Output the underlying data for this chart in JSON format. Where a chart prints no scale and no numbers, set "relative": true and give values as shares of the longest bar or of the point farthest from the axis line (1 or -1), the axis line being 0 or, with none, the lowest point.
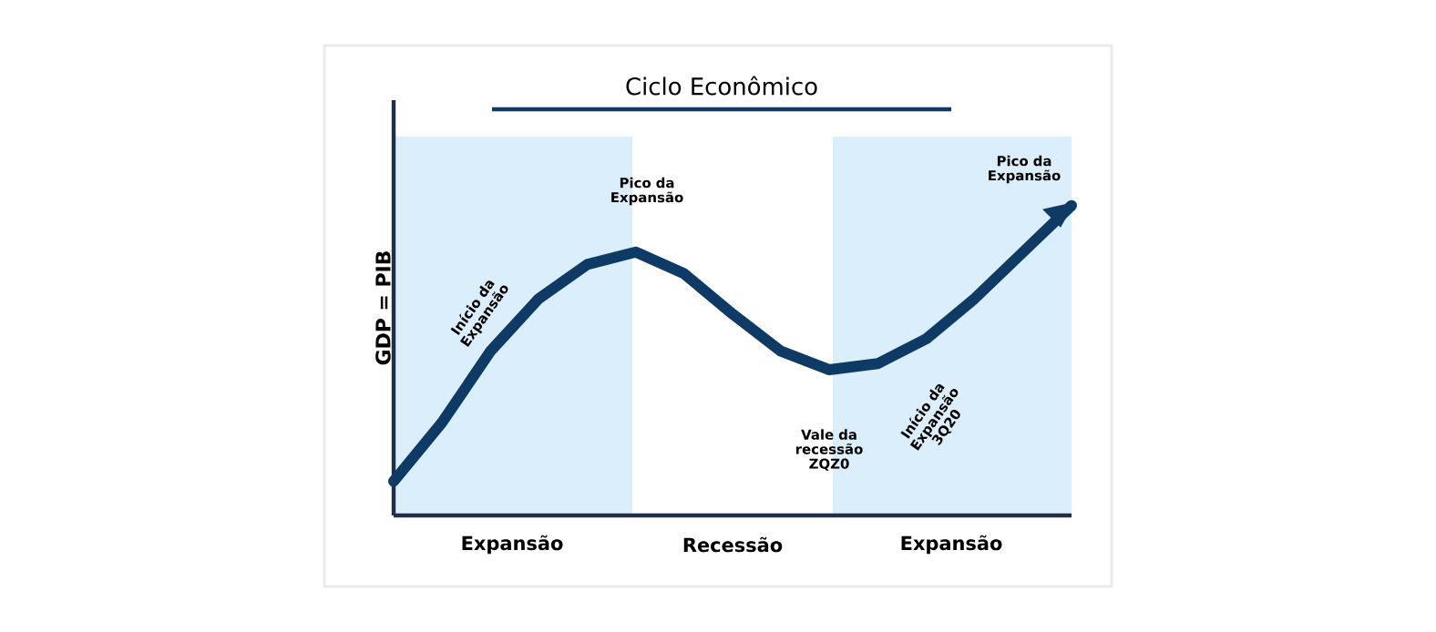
{
  "chart_data": {
    "type": "line",
    "title": "Ciclo Econômico",
    "ylabel": "GDP = PIB",
    "relative": true,
    "tick_labels": false,
    "categories": [
      null,
      null,
      null,
      null,
      null,
      null,
      null,
      null,
      null,
      null,
      null,
      null,
      null,
      null,
      null
    ],
    "values": [
      0.11,
      0.3,
      0.53,
      0.7,
      0.81,
      0.85,
      0.78,
      0.65,
      0.53,
      0.47,
      0.49,
      0.57,
      0.7,
      0.85,
      1
    ],
    "color": "#0d3b66",
    "annotations": [
      "Expansão",
      "Recessão",
      "Expansão",
      "Início da Expansão",
      "Pico da Expansão",
      "Vale da recessão ZQZ0",
      "Início da Expansão 3Q20",
      "Pico da Expansão"
    ]
  }
}
